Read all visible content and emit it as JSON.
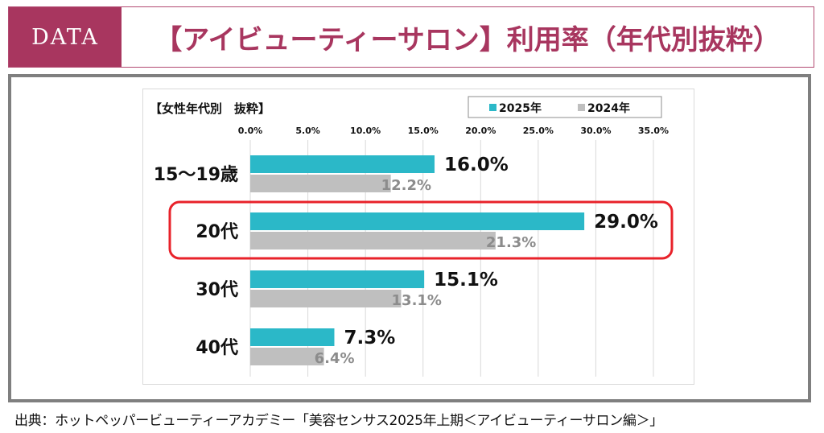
{
  "header": {
    "tag": "DATA",
    "title": "【アイビューティーサロン】利用率（年代別抜粋）"
  },
  "colors": {
    "accent": "#a8365f",
    "series_2025": "#2bb8c8",
    "series_2024": "#bfbfbf",
    "highlight": "#e8222a"
  },
  "chart_data": {
    "type": "bar",
    "orientation": "horizontal",
    "title": "【女性年代別　抜粋】",
    "categories": [
      "15～19歳",
      "20代",
      "30代",
      "40代"
    ],
    "series": [
      {
        "name": "2025年",
        "values": [
          16.0,
          29.0,
          15.1,
          7.3
        ],
        "labels": [
          "16.0%",
          "29.0%",
          "15.1%",
          "7.3%"
        ]
      },
      {
        "name": "2024年",
        "values": [
          12.2,
          21.3,
          13.1,
          6.4
        ],
        "labels": [
          "12.2%",
          "21.3%",
          "13.1%",
          "6.4%"
        ]
      }
    ],
    "xlim": [
      0,
      35
    ],
    "ticks": [
      "0.0%",
      "5.0%",
      "10.0%",
      "15.0%",
      "20.0%",
      "25.0%",
      "30.0%",
      "35.0%"
    ],
    "tick_values": [
      0,
      5,
      10,
      15,
      20,
      25,
      30,
      35
    ],
    "grid": true,
    "legend_position": "top-right",
    "highlighted_category": "20代"
  },
  "source": "出典：ホットペッパービューティーアカデミー「美容センサス2025年上期＜アイビューティーサロン編＞」"
}
